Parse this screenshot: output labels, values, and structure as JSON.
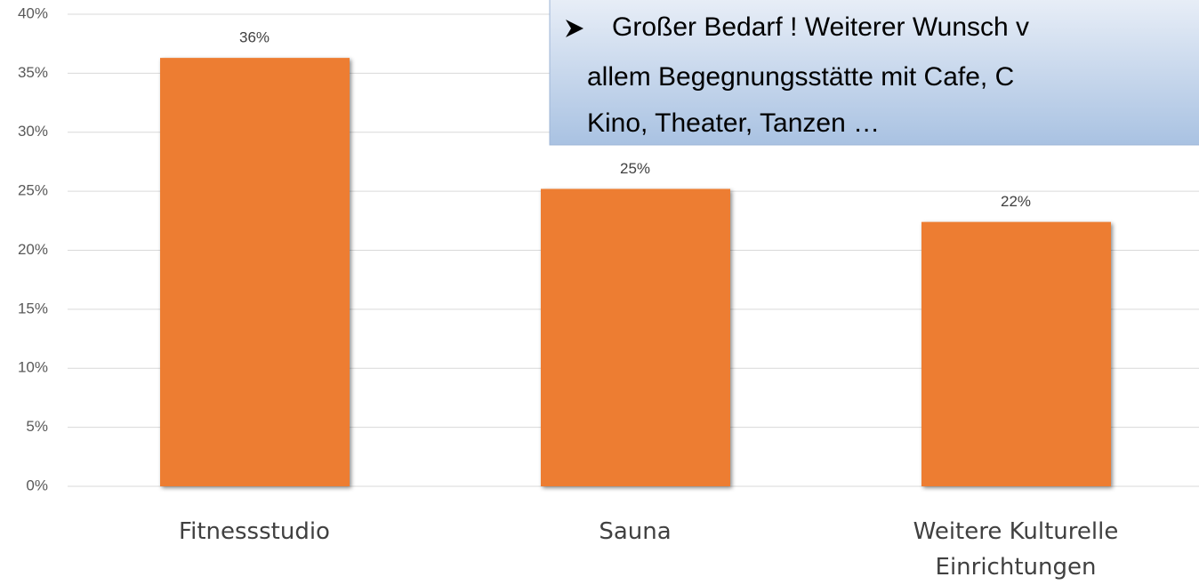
{
  "chart_data": {
    "type": "bar",
    "categories": [
      "Fitnessstudio",
      "Sauna",
      "Weitere Kulturelle Einrichtungen"
    ],
    "values": [
      36.3,
      25.2,
      22.4
    ],
    "value_labels": [
      "36%",
      "25%",
      "22%"
    ],
    "color": "#ed7d31",
    "ylim": [
      0,
      40
    ],
    "yticks": [
      {
        "value": 0,
        "label": "0%"
      },
      {
        "value": 5,
        "label": "5%"
      },
      {
        "value": 10,
        "label": "10%"
      },
      {
        "value": 15,
        "label": "15%"
      },
      {
        "value": 20,
        "label": "20%"
      },
      {
        "value": 25,
        "label": "25%"
      },
      {
        "value": 30,
        "label": "30%"
      },
      {
        "value": 35,
        "label": "35%"
      },
      {
        "value": 40,
        "label": "40%"
      }
    ],
    "grid": true,
    "annotation": [
      "Großer Bedarf ! Weiterer Wunsch v",
      "allem Begegnungsstätte mit Cafe, C",
      "Kino, Theater, Tanzen …"
    ]
  }
}
